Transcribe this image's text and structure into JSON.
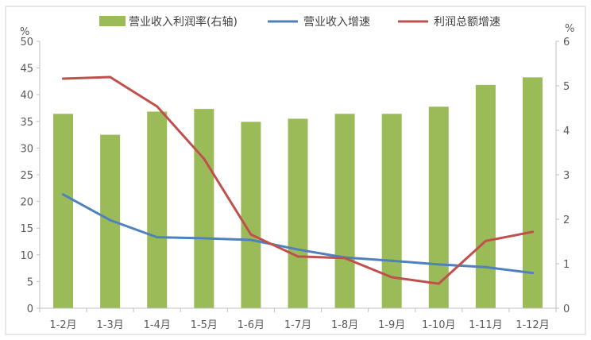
{
  "chart_data": {
    "type": "bar",
    "categories": [
      "1-2月",
      "1-3月",
      "1-4月",
      "1-5月",
      "1-6月",
      "1-7月",
      "1-8月",
      "1-9月",
      "1-10月",
      "1-11月",
      "1-12月"
    ],
    "series": [
      {
        "name": "营业收入利润率(右轴)",
        "type": "bar",
        "axis": "right",
        "color": "#9BBB59",
        "values": [
          4.37,
          3.9,
          4.42,
          4.48,
          4.19,
          4.26,
          4.37,
          4.37,
          4.53,
          5.02,
          5.19
        ]
      },
      {
        "name": "营业收入增速",
        "type": "line",
        "axis": "left",
        "color": "#4F81BD",
        "values": [
          21.3,
          16.5,
          13.3,
          13.1,
          12.8,
          11.0,
          9.5,
          8.9,
          8.2,
          7.7,
          6.6
        ]
      },
      {
        "name": "利润总额增速",
        "type": "line",
        "axis": "left",
        "color": "#C0504D",
        "values": [
          43.0,
          43.3,
          37.8,
          28.0,
          13.8,
          9.7,
          9.4,
          5.8,
          4.6,
          12.6,
          14.3
        ]
      }
    ],
    "left_axis": {
      "unit": "%",
      "ylim": [
        0,
        50
      ],
      "ticks": [
        "0",
        "5",
        "10",
        "15",
        "20",
        "25",
        "30",
        "35",
        "40",
        "45",
        "50"
      ]
    },
    "right_axis": {
      "unit": "%",
      "ylim": [
        0,
        6
      ],
      "ticks": [
        "0",
        "1",
        "2",
        "3",
        "4",
        "5",
        "6"
      ]
    },
    "grid": false,
    "legend_position": "top"
  }
}
